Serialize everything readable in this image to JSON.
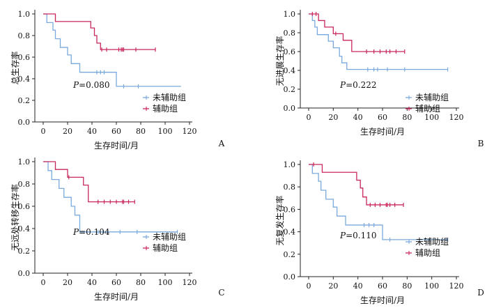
{
  "figure": {
    "colors": {
      "未辅助组": "#7aa9dd",
      "辅助组": "#c9275a",
      "axis": "#222222"
    },
    "legend_placement": "bottom-right inside each panel"
  },
  "chart_data": [
    {
      "type": "line",
      "panel": "A",
      "ylabel": "总生存率",
      "xlabel": "生存时间/月",
      "p_label": "P",
      "p_value": "=0.080",
      "xlim": [
        0,
        120
      ],
      "ylim": [
        0,
        1.0
      ],
      "x_ticks": [
        "0",
        "20",
        "40",
        "60",
        "80",
        "100",
        "120"
      ],
      "y_ticks": [
        "0.0",
        "0.2",
        "0.4",
        "0.6",
        "0.8",
        "1.0"
      ],
      "series": [
        {
          "name": "未辅助组",
          "steps": [
            [
              0,
              1.0
            ],
            [
              3,
              0.92
            ],
            [
              8,
              0.85
            ],
            [
              10,
              0.77
            ],
            [
              14,
              0.69
            ],
            [
              20,
              0.62
            ],
            [
              23,
              0.54
            ],
            [
              30,
              0.46
            ],
            [
              60,
              0.33
            ],
            [
              113,
              0.33
            ]
          ],
          "censored": [
            [
              44,
              0.46
            ],
            [
              47,
              0.46
            ],
            [
              50,
              0.46
            ],
            [
              66,
              0.33
            ],
            [
              78,
              0.33
            ]
          ]
        },
        {
          "name": "辅助组",
          "steps": [
            [
              0,
              1.0
            ],
            [
              10,
              0.93
            ],
            [
              39,
              0.87
            ],
            [
              42,
              0.8
            ],
            [
              44,
              0.73
            ],
            [
              47,
              0.67
            ],
            [
              92,
              0.67
            ]
          ],
          "censored": [
            [
              48,
              0.67
            ],
            [
              52,
              0.67
            ],
            [
              62,
              0.67
            ],
            [
              64,
              0.67
            ],
            [
              65,
              0.67
            ],
            [
              66,
              0.67
            ],
            [
              76,
              0.67
            ],
            [
              92,
              0.67
            ]
          ]
        }
      ]
    },
    {
      "type": "line",
      "panel": "B",
      "ylabel": "无进展生存率",
      "xlabel": "生存时间/月",
      "p_label": "P",
      "p_value": "=0.222",
      "xlim": [
        0,
        120
      ],
      "ylim": [
        0,
        1.0
      ],
      "x_ticks": [
        "0",
        "20",
        "40",
        "60",
        "80",
        "100",
        "120"
      ],
      "y_ticks": [
        "0.0",
        "0.2",
        "0.4",
        "0.6",
        "0.8",
        "1.0"
      ],
      "series": [
        {
          "name": "未辅助组",
          "steps": [
            [
              0,
              1.0
            ],
            [
              3,
              0.93
            ],
            [
              5,
              0.86
            ],
            [
              7,
              0.78
            ],
            [
              16,
              0.71
            ],
            [
              20,
              0.64
            ],
            [
              25,
              0.55
            ],
            [
              27,
              0.48
            ],
            [
              31,
              0.41
            ],
            [
              113,
              0.41
            ]
          ],
          "censored": [
            [
              48,
              0.41
            ],
            [
              53,
              0.41
            ],
            [
              56,
              0.41
            ],
            [
              64,
              0.41
            ],
            [
              78,
              0.41
            ],
            [
              113,
              0.41
            ]
          ]
        },
        {
          "name": "辅助组",
          "steps": [
            [
              0,
              1.0
            ],
            [
              8,
              0.93
            ],
            [
              13,
              0.86
            ],
            [
              20,
              0.79
            ],
            [
              28,
              0.72
            ],
            [
              35,
              0.6
            ],
            [
              78,
              0.6
            ]
          ],
          "censored": [
            [
              3,
              1.0
            ],
            [
              6,
              1.0
            ],
            [
              22,
              0.79
            ],
            [
              47,
              0.6
            ],
            [
              53,
              0.6
            ],
            [
              58,
              0.6
            ],
            [
              63,
              0.6
            ],
            [
              66,
              0.6
            ],
            [
              71,
              0.6
            ],
            [
              78,
              0.6
            ]
          ]
        }
      ]
    },
    {
      "type": "line",
      "panel": "C",
      "ylabel": "无远处转移生存率",
      "xlabel": "生存时间/月",
      "p_label": "P",
      "p_value": "=0.104",
      "xlim": [
        0,
        120
      ],
      "ylim": [
        0,
        1.0
      ],
      "x_ticks": [
        "0",
        "20",
        "40",
        "60",
        "80",
        "100",
        "120"
      ],
      "y_ticks": [
        "0.0",
        "0.2",
        "0.4",
        "0.6",
        "0.8",
        "1.0"
      ],
      "series": [
        {
          "name": "未辅助组",
          "steps": [
            [
              0,
              1.0
            ],
            [
              4,
              0.92
            ],
            [
              7,
              0.84
            ],
            [
              13,
              0.76
            ],
            [
              17,
              0.68
            ],
            [
              23,
              0.6
            ],
            [
              26,
              0.52
            ],
            [
              30,
              0.37
            ],
            [
              110,
              0.37
            ]
          ],
          "censored": [
            [
              45,
              0.37
            ],
            [
              49,
              0.37
            ],
            [
              53,
              0.37
            ],
            [
              63,
              0.37
            ],
            [
              77,
              0.37
            ],
            [
              110,
              0.37
            ]
          ]
        },
        {
          "name": "辅助组",
          "steps": [
            [
              0,
              1.0
            ],
            [
              10,
              0.93
            ],
            [
              20,
              0.86
            ],
            [
              33,
              0.79
            ],
            [
              37,
              0.64
            ],
            [
              75,
              0.64
            ]
          ],
          "censored": [
            [
              21,
              0.86
            ],
            [
              45,
              0.64
            ],
            [
              50,
              0.64
            ],
            [
              55,
              0.64
            ],
            [
              60,
              0.64
            ],
            [
              65,
              0.64
            ],
            [
              66,
              0.64
            ],
            [
              70,
              0.64
            ],
            [
              75,
              0.64
            ]
          ]
        }
      ]
    },
    {
      "type": "line",
      "panel": "D",
      "ylabel": "无复发生存率",
      "xlabel": "生存时间/月",
      "p_label": "P",
      "p_value": "=0.110",
      "xlim": [
        0,
        120
      ],
      "ylim": [
        0,
        1.0
      ],
      "x_ticks": [
        "0",
        "20",
        "40",
        "60",
        "80",
        "100",
        "120"
      ],
      "y_ticks": [
        "0.0",
        "0.2",
        "0.4",
        "0.6",
        "0.8",
        "1.0"
      ],
      "series": [
        {
          "name": "未辅助组",
          "steps": [
            [
              0,
              1.0
            ],
            [
              3,
              0.92
            ],
            [
              8,
              0.85
            ],
            [
              10,
              0.77
            ],
            [
              14,
              0.69
            ],
            [
              20,
              0.62
            ],
            [
              23,
              0.54
            ],
            [
              30,
              0.46
            ],
            [
              60,
              0.33
            ],
            [
              113,
              0.33
            ]
          ],
          "censored": [
            [
              45,
              0.46
            ],
            [
              49,
              0.46
            ],
            [
              53,
              0.46
            ],
            [
              66,
              0.33
            ],
            [
              113,
              0.33
            ]
          ]
        },
        {
          "name": "辅助组",
          "steps": [
            [
              0,
              1.0
            ],
            [
              11,
              0.93
            ],
            [
              39,
              0.86
            ],
            [
              42,
              0.79
            ],
            [
              44,
              0.71
            ],
            [
              47,
              0.64
            ],
            [
              77,
              0.64
            ]
          ],
          "censored": [
            [
              4,
              1.0
            ],
            [
              50,
              0.64
            ],
            [
              54,
              0.64
            ],
            [
              58,
              0.64
            ],
            [
              63,
              0.64
            ],
            [
              64,
              0.64
            ],
            [
              66,
              0.64
            ],
            [
              70,
              0.64
            ],
            [
              77,
              0.64
            ]
          ]
        }
      ]
    }
  ]
}
